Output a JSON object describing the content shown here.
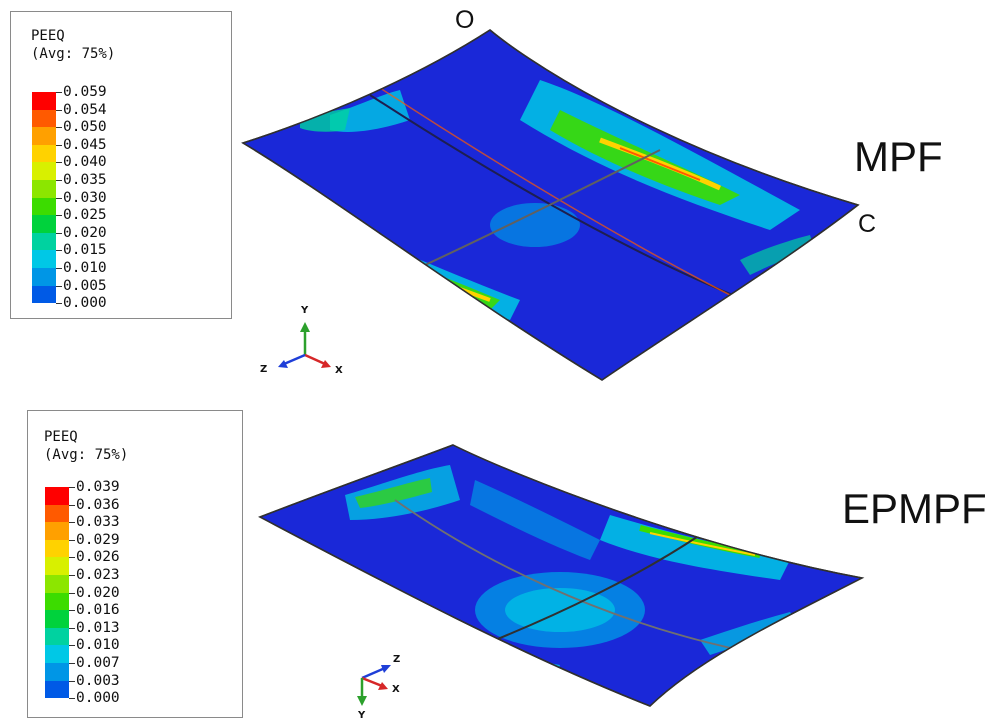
{
  "panels": [
    {
      "legend": {
        "title_line1": "PEEQ",
        "title_line2": "(Avg: 75%)",
        "levels": [
          "0.059",
          "0.054",
          "0.050",
          "0.045",
          "0.040",
          "0.035",
          "0.030",
          "0.025",
          "0.020",
          "0.015",
          "0.010",
          "0.005",
          "0.000"
        ]
      },
      "model_label": "MPF",
      "corner_top": "O",
      "corner_right": "C",
      "triad": {
        "up": "Y",
        "side_left": "Z",
        "side_right": "X"
      }
    },
    {
      "legend": {
        "title_line1": "PEEQ",
        "title_line2": "(Avg: 75%)",
        "levels": [
          "0.039",
          "0.036",
          "0.033",
          "0.029",
          "0.026",
          "0.023",
          "0.020",
          "0.016",
          "0.013",
          "0.010",
          "0.007",
          "0.003",
          "0.000"
        ]
      },
      "model_label": "EPMPF",
      "triad": {
        "top": "Z",
        "side": "X",
        "bottom": "Y"
      }
    }
  ],
  "colors": {
    "contour_scale": [
      "#ff0000",
      "#ff5a00",
      "#ffa000",
      "#ffd200",
      "#d8f000",
      "#8ce600",
      "#3cdc00",
      "#00d23c",
      "#00d2a0",
      "#00c8e6",
      "#0096e6",
      "#005ae6",
      "#0014dc"
    ],
    "plate_base": "#1a28d8",
    "plate_edge": "#303030"
  }
}
